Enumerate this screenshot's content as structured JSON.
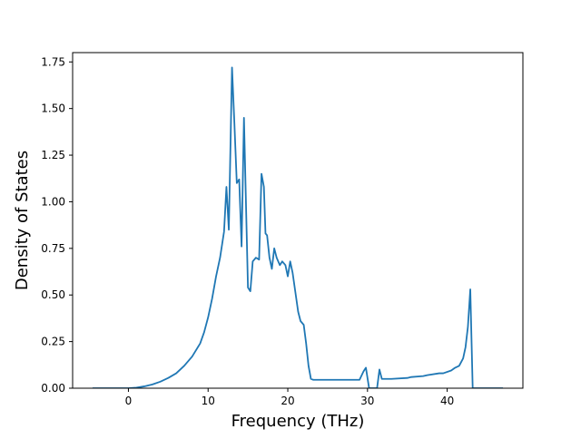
{
  "chart_data": {
    "type": "line",
    "title": "",
    "xlabel": "Frequency (THz)",
    "ylabel": "Density of States",
    "xlim": [
      -7,
      49.5
    ],
    "ylim": [
      0,
      1.8
    ],
    "x_ticks": [
      0,
      10,
      20,
      30,
      40
    ],
    "y_ticks": [
      0.0,
      0.25,
      0.5,
      0.75,
      1.0,
      1.25,
      1.5,
      1.75
    ],
    "x_tick_labels": [
      "0",
      "10",
      "20",
      "30",
      "40"
    ],
    "y_tick_labels": [
      "0.00",
      "0.25",
      "0.50",
      "0.75",
      "1.00",
      "1.25",
      "1.50",
      "1.75"
    ],
    "grid": false,
    "line_color": "#1f77b4",
    "series": [
      {
        "x": [
          -4.5,
          0,
          1,
          2,
          3,
          4,
          5,
          6,
          7,
          8,
          9,
          9.5,
          10,
          10.5,
          11,
          11.5,
          12,
          12.3,
          12.6,
          13,
          13.3,
          13.6,
          13.9,
          14.2,
          14.5,
          15,
          15.3,
          15.6,
          16,
          16.4,
          16.7,
          17,
          17.2,
          17.4,
          17.7,
          18,
          18.3,
          18.6,
          19,
          19.3,
          19.7,
          20,
          20.3,
          20.6,
          21,
          21.3,
          21.6,
          22,
          22.3,
          22.6,
          22.9,
          23.2,
          25,
          27,
          29,
          29.5,
          29.8,
          30.2,
          31.2,
          31.5,
          31.8,
          33,
          35,
          35.5,
          37,
          37.5,
          39,
          39.5,
          40.5,
          41,
          41.5,
          42,
          42.3,
          42.6,
          42.9,
          43.2,
          47
        ],
        "y": [
          0,
          0,
          0.003,
          0.01,
          0.02,
          0.035,
          0.055,
          0.08,
          0.12,
          0.17,
          0.24,
          0.3,
          0.38,
          0.48,
          0.6,
          0.7,
          0.84,
          1.08,
          0.85,
          1.72,
          1.42,
          1.1,
          1.12,
          0.76,
          1.45,
          0.54,
          0.52,
          0.68,
          0.7,
          0.69,
          1.15,
          1.08,
          0.83,
          0.82,
          0.7,
          0.64,
          0.75,
          0.7,
          0.66,
          0.68,
          0.66,
          0.6,
          0.68,
          0.62,
          0.5,
          0.41,
          0.36,
          0.34,
          0.24,
          0.12,
          0.05,
          0.045,
          0.045,
          0.045,
          0.045,
          0.09,
          0.11,
          0.0,
          0.0,
          0.1,
          0.05,
          0.05,
          0.055,
          0.06,
          0.065,
          0.07,
          0.08,
          0.08,
          0.095,
          0.11,
          0.12,
          0.16,
          0.22,
          0.33,
          0.53,
          0.0,
          0.0
        ]
      }
    ]
  }
}
